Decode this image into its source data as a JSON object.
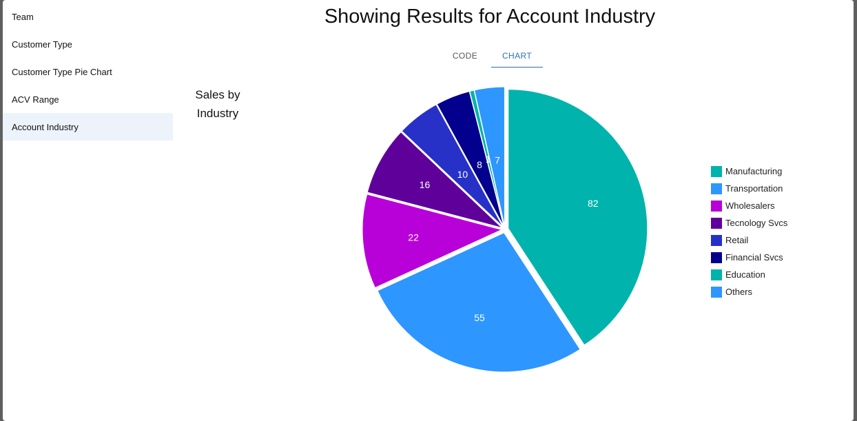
{
  "sidebar": {
    "items": [
      {
        "label": "Team",
        "active": false
      },
      {
        "label": "Customer Type",
        "active": false
      },
      {
        "label": "Customer Type Pie Chart",
        "active": false
      },
      {
        "label": "ACV Range",
        "active": false
      },
      {
        "label": "Account Industry",
        "active": true
      }
    ]
  },
  "header": {
    "title": "Showing Results for Account Industry"
  },
  "tabs": [
    {
      "label": "CODE",
      "active": false
    },
    {
      "label": "CHART",
      "active": true
    }
  ],
  "chart_data": {
    "type": "pie",
    "title": "Sales by Industry",
    "legend_position": "right",
    "slices": [
      {
        "name": "Manufacturing",
        "value": 82,
        "color": "#00b3ac"
      },
      {
        "name": "Transportation",
        "value": 55,
        "color": "#2e96ff"
      },
      {
        "name": "Wholesalers",
        "value": 22,
        "color": "#b800d8"
      },
      {
        "name": "Tecnology Svcs",
        "value": 16,
        "color": "#60009b"
      },
      {
        "name": "Retail",
        "value": 10,
        "color": "#2731c8"
      },
      {
        "name": "Financial Svcs",
        "value": 8,
        "color": "#03008d"
      },
      {
        "name": "Education",
        "value": 1,
        "color": "#00b3ac"
      },
      {
        "name": "Others",
        "value": 7,
        "color": "#2e96ff"
      }
    ]
  }
}
